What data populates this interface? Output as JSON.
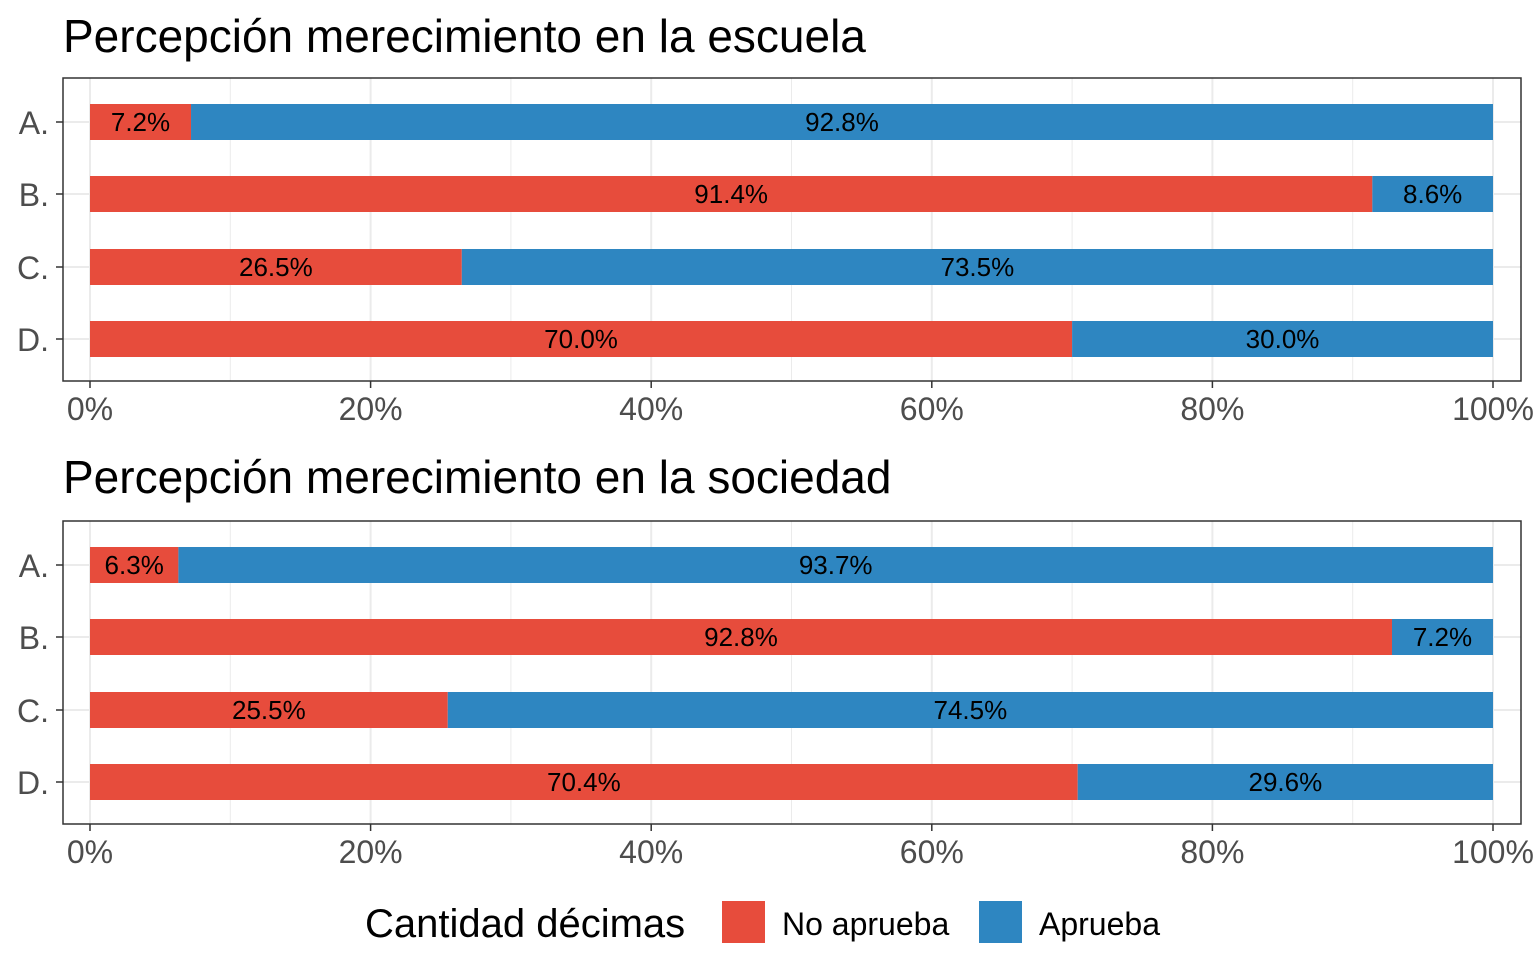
{
  "chart_data": [
    {
      "type": "bar",
      "orientation": "horizontal",
      "stacked": "percent",
      "title": "Percepción merecimiento en la escuela",
      "categories": [
        "A.",
        "B.",
        "C.",
        "D."
      ],
      "series": [
        {
          "name": "No aprueba",
          "values": [
            7.2,
            91.4,
            26.5,
            70.0
          ],
          "labels": [
            "7.2%",
            "91.4%",
            "26.5%",
            "70.0%"
          ]
        },
        {
          "name": "Aprueba",
          "values": [
            92.8,
            8.6,
            73.5,
            30.0
          ],
          "labels": [
            "92.8%",
            "8.6%",
            "73.5%",
            "30.0%"
          ]
        }
      ],
      "xlim": [
        0,
        100
      ],
      "xticks": [
        "0%",
        "20%",
        "40%",
        "60%",
        "80%",
        "100%"
      ],
      "grid": true
    },
    {
      "type": "bar",
      "orientation": "horizontal",
      "stacked": "percent",
      "title": "Percepción merecimiento en la sociedad",
      "categories": [
        "A.",
        "B.",
        "C.",
        "D."
      ],
      "series": [
        {
          "name": "No aprueba",
          "values": [
            6.3,
            92.8,
            25.5,
            70.4
          ],
          "labels": [
            "6.3%",
            "92.8%",
            "25.5%",
            "70.4%"
          ]
        },
        {
          "name": "Aprueba",
          "values": [
            93.7,
            7.2,
            74.5,
            29.6
          ],
          "labels": [
            "93.7%",
            "7.2%",
            "74.5%",
            "29.6%"
          ]
        }
      ],
      "xlim": [
        0,
        100
      ],
      "xticks": [
        "0%",
        "20%",
        "40%",
        "60%",
        "80%",
        "100%"
      ],
      "grid": true
    }
  ],
  "legend": {
    "title": "Cantidad décimas",
    "position": "bottom",
    "items": [
      {
        "label": "No aprueba",
        "color": "#E74C3C"
      },
      {
        "label": "Aprueba",
        "color": "#2E86C1"
      }
    ]
  },
  "colors": {
    "no_aprueba": "#E74C3C",
    "aprueba": "#2E86C1",
    "grid": "#EBEBEB",
    "frame": "#333333",
    "tick_text": "#4D4D4D"
  }
}
